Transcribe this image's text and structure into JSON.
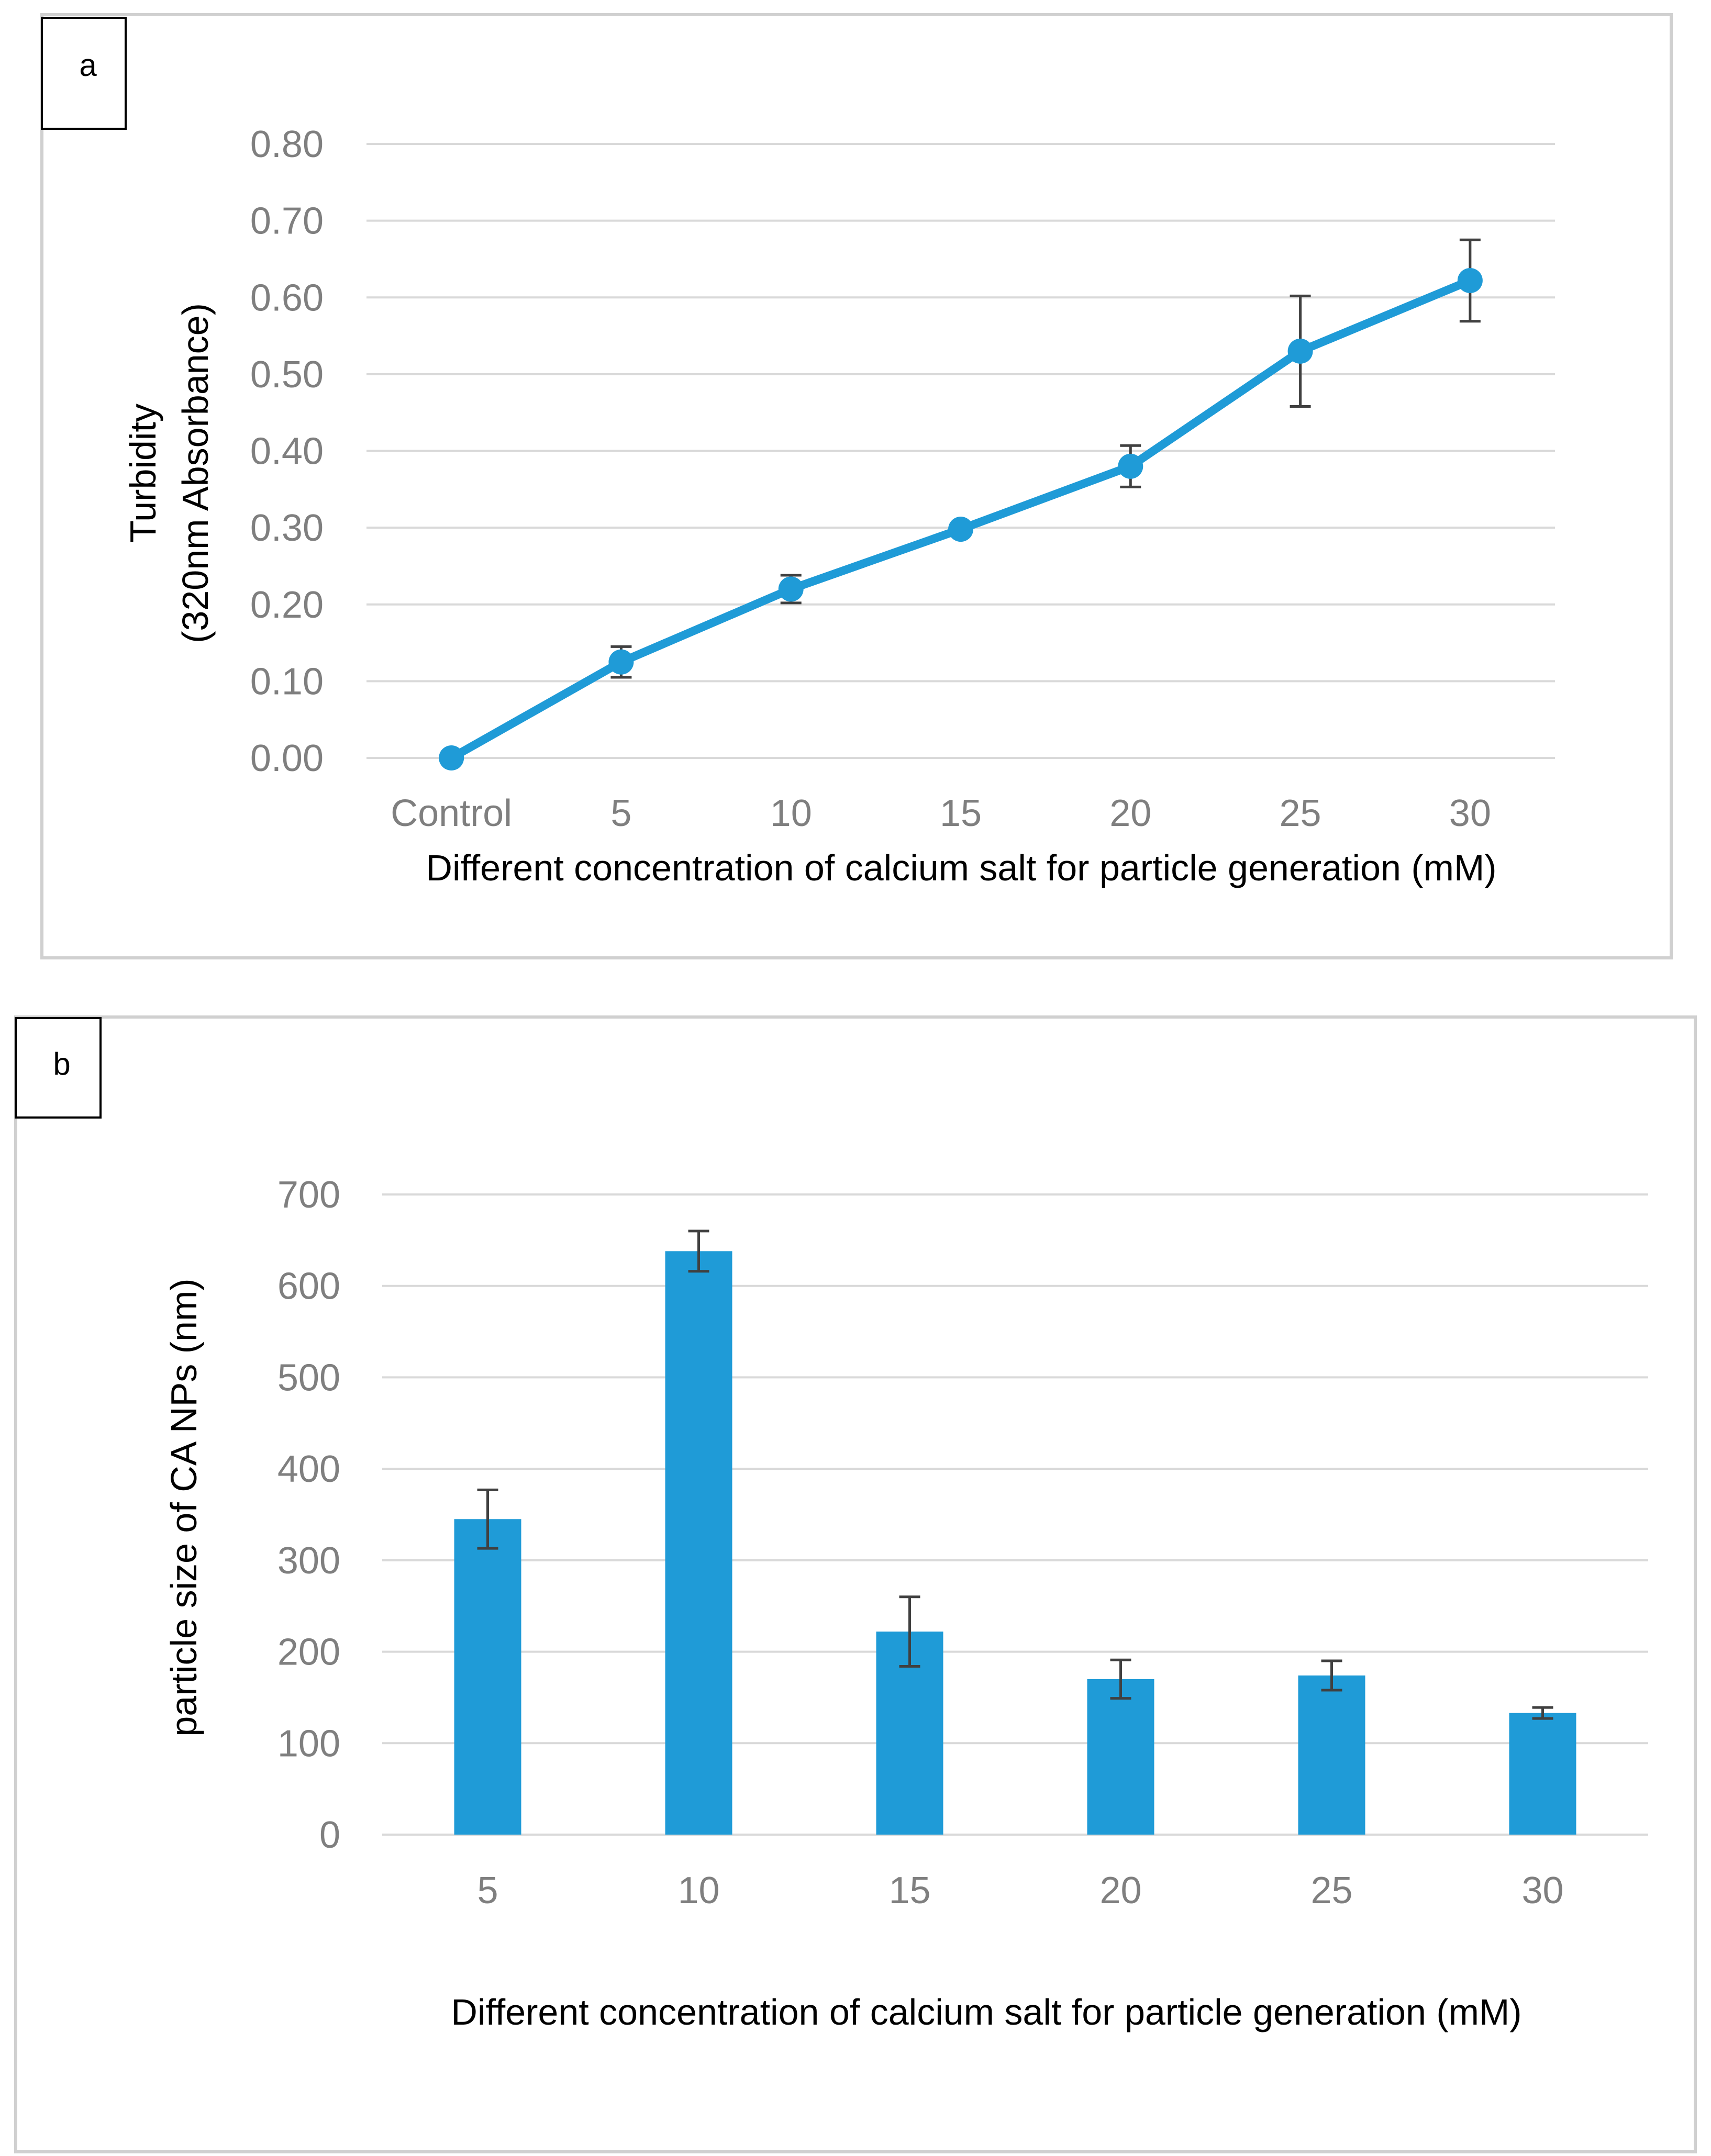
{
  "colors": {
    "series": "#1f9bd7",
    "grid": "#d9d9d9",
    "error_bar": "#404040",
    "panel_border": "#d0d0d0",
    "tick_text": "#7f7f7f"
  },
  "chart_data": [
    {
      "panel_label": "a",
      "type": "line",
      "categories": [
        "Control",
        "5",
        "10",
        "15",
        "20",
        "25",
        "30"
      ],
      "values": [
        0.0,
        0.125,
        0.22,
        0.298,
        0.38,
        0.53,
        0.622
      ],
      "errors": [
        0.0,
        0.02,
        0.018,
        0.0,
        0.027,
        0.072,
        0.053
      ],
      "ylim": [
        0,
        0.8
      ],
      "yticks": [
        "0.00",
        "0.10",
        "0.20",
        "0.30",
        "0.40",
        "0.50",
        "0.60",
        "0.70",
        "0.80"
      ],
      "ylabel_line1": "Turbidity",
      "ylabel_line2": "(320nm Absorbance)",
      "xlabel": "Different concentration of calcium salt for particle generation (mM)",
      "grid": true,
      "legend": "none"
    },
    {
      "panel_label": "b",
      "type": "bar",
      "categories": [
        "5",
        "10",
        "15",
        "20",
        "25",
        "30"
      ],
      "values": [
        345,
        638,
        222,
        170,
        174,
        133
      ],
      "errors": [
        32,
        22,
        38,
        21,
        16,
        6
      ],
      "ylim": [
        0,
        700
      ],
      "yticks": [
        "0",
        "100",
        "200",
        "300",
        "400",
        "500",
        "600",
        "700"
      ],
      "ylabel": "particle size of CA NPs (nm)",
      "xlabel": "Different concentration of calcium salt for particle generation (mM)",
      "grid": true,
      "legend": "none"
    }
  ]
}
